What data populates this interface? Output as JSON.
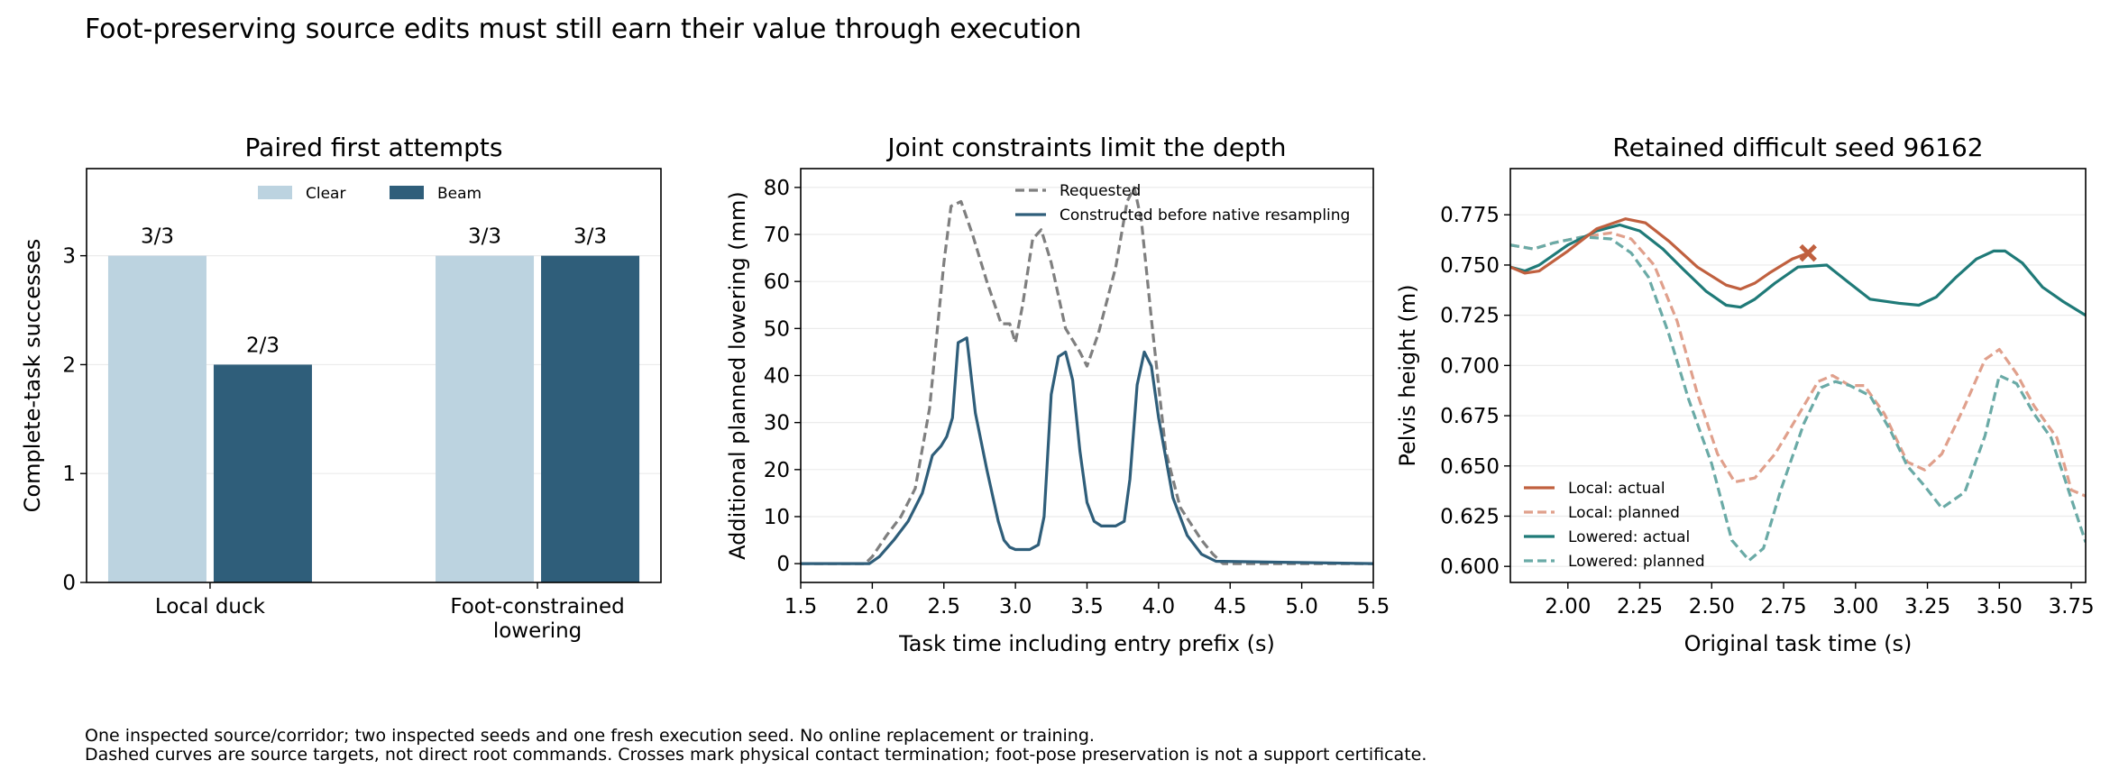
{
  "figure": {
    "title": "Foot-preserving source edits must still earn their value through execution",
    "footnote_lines": [
      "One inspected source/corridor; two inspected seeds and one fresh execution seed. No online replacement or training.",
      "Dashed curves are source targets, not direct root commands. Crosses mark physical contact termination; foot-pose preservation is not a support certificate."
    ]
  },
  "colors": {
    "clear": "#bcd3e0",
    "beam": "#2f5e7a",
    "requested": "#7f7f7f",
    "constructed": "#2f5e7a",
    "local_actual": "#c0603f",
    "local_planned": "#e0a08c",
    "lowered_actual": "#1f7a78",
    "lowered_planned": "#6aaaa6",
    "grid": "#ebebeb"
  },
  "chart_data": [
    {
      "type": "bar",
      "title": "Paired first attempts",
      "ylabel": "Complete-task successes",
      "xlabel": "",
      "categories": [
        "Local duck",
        "Foot-constrained\nlowering"
      ],
      "series": [
        {
          "name": "Clear",
          "values": [
            3,
            3
          ],
          "labels": [
            "3/3",
            "3/3"
          ]
        },
        {
          "name": "Beam",
          "values": [
            2,
            3
          ],
          "labels": [
            "2/3",
            "3/3"
          ]
        }
      ],
      "ylim": [
        0,
        3.8
      ],
      "yticks": [
        0,
        1,
        2,
        3
      ],
      "grid": true,
      "legend": "top-center"
    },
    {
      "type": "line",
      "title": "Joint constraints limit the depth",
      "xlabel": "Task time including entry prefix (s)",
      "ylabel": "Additional planned lowering (mm)",
      "xlim": [
        1.5,
        5.5
      ],
      "ylim": [
        -4,
        84
      ],
      "xticks": [
        1.5,
        2.0,
        2.5,
        3.0,
        3.5,
        4.0,
        4.5,
        5.0,
        5.5
      ],
      "yticks": [
        0,
        10,
        20,
        30,
        40,
        50,
        60,
        70,
        80
      ],
      "grid": true,
      "legend": "top-right",
      "series": [
        {
          "name": "Requested",
          "style": "dashed",
          "x": [
            1.5,
            1.95,
            2.0,
            2.1,
            2.2,
            2.3,
            2.4,
            2.5,
            2.55,
            2.62,
            2.7,
            2.8,
            2.9,
            2.96,
            3.0,
            3.05,
            3.12,
            3.18,
            3.25,
            3.35,
            3.45,
            3.5,
            3.58,
            3.7,
            3.78,
            3.83,
            3.88,
            3.95,
            4.05,
            4.15,
            4.3,
            4.38,
            4.45,
            5.5
          ],
          "y": [
            0,
            0,
            1.5,
            6,
            10,
            16,
            33,
            64,
            76,
            77,
            70,
            60,
            51,
            51,
            47,
            55,
            69,
            71,
            64,
            50,
            45,
            42,
            49,
            63,
            77,
            80,
            73,
            52,
            24,
            12,
            5,
            2,
            0,
            0
          ]
        },
        {
          "name": "Constructed before native resampling",
          "style": "solid",
          "x": [
            1.5,
            1.98,
            2.05,
            2.15,
            2.25,
            2.35,
            2.42,
            2.48,
            2.52,
            2.56,
            2.6,
            2.66,
            2.72,
            2.8,
            2.88,
            2.92,
            2.96,
            3.0,
            3.1,
            3.16,
            3.2,
            3.25,
            3.3,
            3.35,
            3.4,
            3.45,
            3.5,
            3.55,
            3.6,
            3.7,
            3.76,
            3.8,
            3.85,
            3.9,
            3.95,
            4.0,
            4.1,
            4.2,
            4.3,
            4.4,
            5.5
          ],
          "y": [
            0,
            0,
            1.5,
            5,
            9,
            15,
            23,
            25,
            27,
            31,
            47,
            48,
            32,
            20,
            9,
            5,
            3.5,
            3,
            3,
            4,
            10,
            36,
            44,
            45,
            39,
            24,
            13,
            9,
            8,
            8,
            9,
            18,
            38,
            45,
            42,
            31,
            14,
            6,
            2,
            0.5,
            0
          ]
        }
      ]
    },
    {
      "type": "line",
      "title": "Retained difficult seed 96162",
      "xlabel": "Original task time (s)",
      "ylabel": "Pelvis height (m)",
      "xlim": [
        1.8,
        3.8
      ],
      "ylim": [
        0.592,
        0.798
      ],
      "xticks": [
        2.0,
        2.25,
        2.5,
        2.75,
        3.0,
        3.25,
        3.5,
        3.75
      ],
      "yticks": [
        0.6,
        0.625,
        0.65,
        0.675,
        0.7,
        0.725,
        0.75,
        0.775
      ],
      "grid": true,
      "legend": "bottom-left",
      "contact_termination_marker": {
        "series": "Local: actual",
        "x": 2.835,
        "y": 0.756
      },
      "series": [
        {
          "name": "Local: actual",
          "style": "solid",
          "x": [
            1.8,
            1.85,
            1.9,
            2.0,
            2.1,
            2.2,
            2.27,
            2.35,
            2.45,
            2.55,
            2.6,
            2.65,
            2.7,
            2.78,
            2.835
          ],
          "y": [
            0.749,
            0.746,
            0.747,
            0.757,
            0.768,
            0.773,
            0.771,
            0.762,
            0.749,
            0.74,
            0.738,
            0.741,
            0.746,
            0.753,
            0.756
          ]
        },
        {
          "name": "Local: planned",
          "style": "dashed",
          "x": [
            1.8,
            1.88,
            1.95,
            2.05,
            2.15,
            2.22,
            2.3,
            2.38,
            2.45,
            2.52,
            2.58,
            2.65,
            2.72,
            2.8,
            2.87,
            2.92,
            2.98,
            3.03,
            3.1,
            3.18,
            3.24,
            3.3,
            3.38,
            3.45,
            3.5,
            3.56,
            3.62,
            3.7,
            3.75,
            3.8
          ],
          "y": [
            0.76,
            0.758,
            0.761,
            0.764,
            0.766,
            0.763,
            0.75,
            0.722,
            0.686,
            0.656,
            0.642,
            0.644,
            0.656,
            0.675,
            0.692,
            0.695,
            0.69,
            0.69,
            0.676,
            0.652,
            0.648,
            0.656,
            0.68,
            0.703,
            0.708,
            0.696,
            0.68,
            0.664,
            0.638,
            0.635
          ]
        },
        {
          "name": "Lowered: actual",
          "style": "solid",
          "x": [
            1.8,
            1.85,
            1.9,
            2.0,
            2.1,
            2.18,
            2.25,
            2.33,
            2.4,
            2.48,
            2.55,
            2.6,
            2.65,
            2.72,
            2.8,
            2.9,
            2.97,
            3.05,
            3.15,
            3.22,
            3.28,
            3.35,
            3.42,
            3.48,
            3.52,
            3.58,
            3.65,
            3.72,
            3.8
          ],
          "y": [
            0.749,
            0.747,
            0.75,
            0.76,
            0.767,
            0.77,
            0.767,
            0.758,
            0.748,
            0.737,
            0.73,
            0.729,
            0.733,
            0.741,
            0.749,
            0.75,
            0.742,
            0.733,
            0.731,
            0.73,
            0.734,
            0.744,
            0.753,
            0.757,
            0.757,
            0.751,
            0.739,
            0.732,
            0.725
          ]
        },
        {
          "name": "Lowered: planned",
          "style": "dashed",
          "x": [
            1.8,
            1.88,
            1.95,
            2.05,
            2.15,
            2.22,
            2.28,
            2.35,
            2.42,
            2.5,
            2.57,
            2.63,
            2.68,
            2.74,
            2.82,
            2.88,
            2.93,
            2.98,
            3.05,
            3.12,
            3.18,
            3.24,
            3.3,
            3.38,
            3.45,
            3.5,
            3.56,
            3.62,
            3.68,
            3.74,
            3.8
          ],
          "y": [
            0.76,
            0.758,
            0.761,
            0.764,
            0.763,
            0.756,
            0.744,
            0.716,
            0.683,
            0.651,
            0.613,
            0.603,
            0.609,
            0.638,
            0.671,
            0.689,
            0.692,
            0.69,
            0.685,
            0.668,
            0.65,
            0.64,
            0.629,
            0.637,
            0.665,
            0.695,
            0.691,
            0.676,
            0.664,
            0.638,
            0.612
          ]
        }
      ]
    }
  ]
}
